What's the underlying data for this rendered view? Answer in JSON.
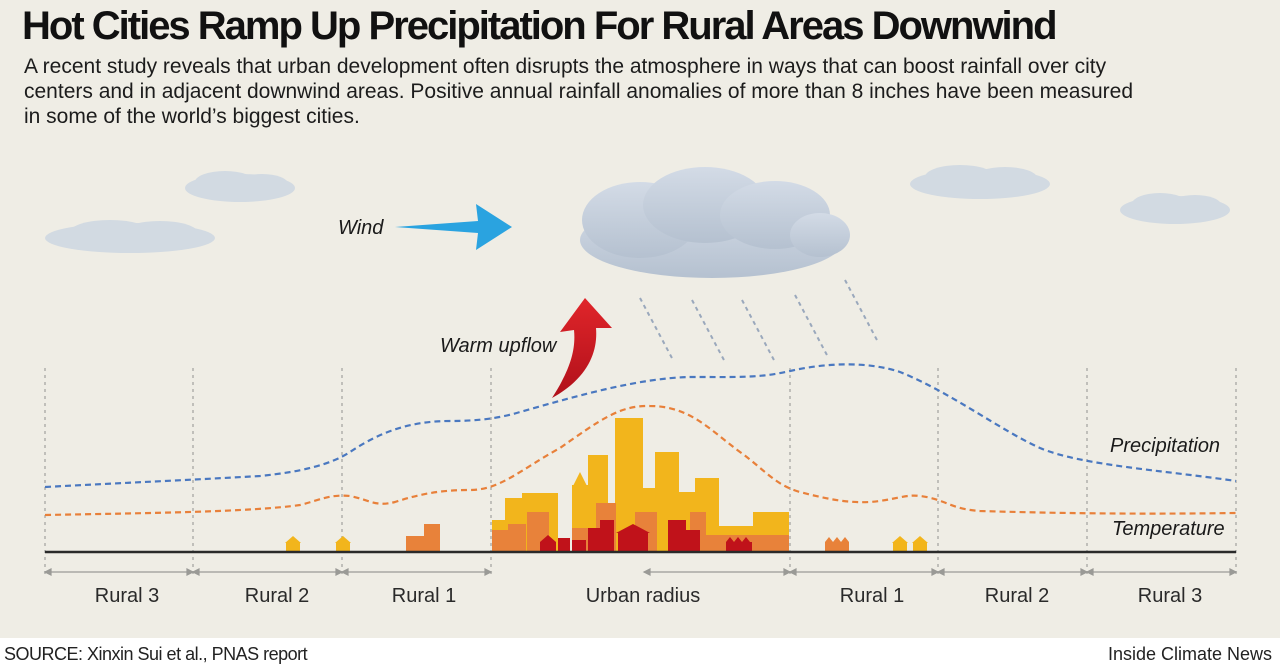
{
  "title": "Hot Cities Ramp Up Precipitation For Rural Areas Downwind",
  "subtitle": "A recent study reveals that urban development often disrupts the atmosphere in ways that can boost rainfall over city centers and in adjacent downwind areas. Positive annual rainfall anomalies of more than 8 inches have been measured in some of the world’s biggest cities.",
  "labels": {
    "wind": "Wind",
    "warm_upflow": "Warm upflow",
    "precipitation": "Precipitation",
    "temperature": "Temperature"
  },
  "zones": [
    "Rural 3",
    "Rural 2",
    "Rural 1",
    "Urban radius",
    "Rural 1",
    "Rural 2",
    "Rural 3"
  ],
  "footer": {
    "source": "SOURCE: Xinxin Sui et al., PNAS report",
    "credit": "Inside Climate News"
  },
  "colors": {
    "background": "#efede5",
    "cloud": "#c5d0dc",
    "wind_arrow": "#2aa3e0",
    "upflow_arrow": "#c0121a",
    "precipitation_line": "#4a78c0",
    "temperature_line": "#e8803a",
    "building_yellow": "#f2b51c",
    "building_orange": "#e8823a",
    "building_red": "#c0121a"
  }
}
